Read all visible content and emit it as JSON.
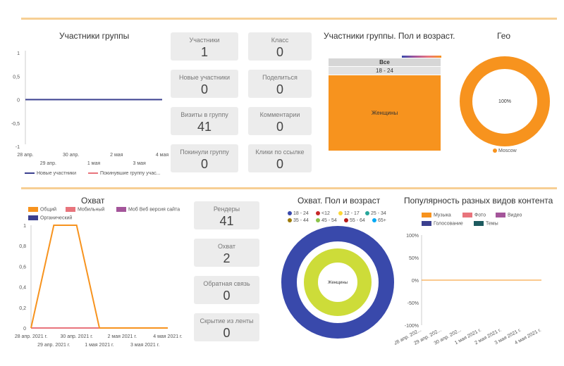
{
  "colors": {
    "orange": "#f7931e",
    "pink": "#e8747c",
    "purple": "#a4559a",
    "navy": "#3a3f8f",
    "teal": "#1d5a5f",
    "lime": "#cddc39",
    "blue": "#3949ab",
    "gray_card": "#ececec",
    "divider": "#f7cf94"
  },
  "members_chart": {
    "title": "Участники группы",
    "legend": [
      "Новые участники",
      "Покинувшие группу учас..."
    ]
  },
  "cards_top": [
    {
      "label": "Участники",
      "value": "1"
    },
    {
      "label": "Класс",
      "value": "0"
    },
    {
      "label": "Новые участники",
      "value": "0"
    },
    {
      "label": "Поделиться",
      "value": "0"
    },
    {
      "label": "Визиты в группу",
      "value": "41"
    },
    {
      "label": "Комментарии",
      "value": "0"
    },
    {
      "label": "Покинули группу",
      "value": "0"
    },
    {
      "label": "Клики по ссылке",
      "value": "0"
    }
  ],
  "treemap": {
    "title": "Участники группы. Пол и возраст.",
    "level1": "Все",
    "level2": "18 - 24",
    "leaf": "Женщины"
  },
  "geo": {
    "title": "Гео",
    "center_label": "100%",
    "legend": "Moscow"
  },
  "reach_chart": {
    "title": "Охват",
    "legend": [
      "Общий",
      "Мобильный",
      "Моб Веб версия сайта",
      "Органический"
    ]
  },
  "cards_bottom": [
    {
      "label": "Рендеры",
      "value": "41"
    },
    {
      "label": "Охват",
      "value": "2"
    },
    {
      "label": "Обратная связь",
      "value": "0"
    },
    {
      "label": "Скрытие из ленты",
      "value": "0"
    }
  ],
  "reach_demo": {
    "title": "Охват. Пол и возраст",
    "legend": [
      "18 - 24",
      "<12",
      "12 - 17",
      "25 - 34",
      "35 - 44",
      "45 - 54",
      "55 - 64",
      "65+"
    ],
    "center_label": "Женщины"
  },
  "content_pop": {
    "title": "Популярность разных видов контента",
    "legend": [
      "Музыка",
      "Фото",
      "Видео",
      "Голосование",
      "Темы"
    ]
  },
  "chart_data": [
    {
      "type": "line",
      "title": "Участники группы",
      "ylim": [
        -1,
        1
      ],
      "y_ticks": [
        "1",
        "0,5",
        "0",
        "-0,5",
        "-1"
      ],
      "x_ticks_row1": [
        "28 апр.",
        "30 апр.",
        "2 мая",
        "4 мая"
      ],
      "x_ticks_row2": [
        "29 апр.",
        "1 мая",
        "3 мая"
      ],
      "x": [
        "28 апр.",
        "29 апр.",
        "30 апр.",
        "1 мая",
        "2 мая",
        "3 мая",
        "4 мая"
      ],
      "series": [
        {
          "name": "Новые участники",
          "values": [
            0,
            0,
            0,
            0,
            0,
            0,
            0
          ]
        },
        {
          "name": "Покинувшие группу учас...",
          "values": [
            0,
            0,
            0,
            0,
            0,
            0,
            0
          ]
        }
      ],
      "legend_position": "bottom"
    },
    {
      "type": "treemap",
      "title": "Участники группы. Пол и возраст.",
      "values": [
        {
          "path": [
            "Все",
            "18 - 24",
            "Женщины"
          ],
          "value": 1
        }
      ]
    },
    {
      "type": "pie",
      "title": "Гео",
      "slices": [
        {
          "name": "Moscow",
          "value": 100
        }
      ],
      "donut": true
    },
    {
      "type": "line",
      "title": "Охват",
      "ylim": [
        0,
        1
      ],
      "y_ticks": [
        "1",
        "0,8",
        "0,6",
        "0,4",
        "0,2",
        "0"
      ],
      "x_ticks_row1": [
        "28 апр. 2021 г.",
        "30 апр. 2021 г.",
        "2 мая 2021 г.",
        "4 мая 2021 г."
      ],
      "x_ticks_row2": [
        "29 апр. 2021 г.",
        "1 мая 2021 г.",
        "3 мая 2021 г."
      ],
      "x": [
        "28 апр.",
        "29 апр.",
        "30 апр.",
        "1 мая",
        "2 мая",
        "3 мая",
        "4 мая"
      ],
      "series": [
        {
          "name": "Общий",
          "values": [
            0,
            1,
            1,
            0,
            0,
            0,
            0
          ]
        },
        {
          "name": "Мобильный",
          "values": [
            0,
            0,
            0,
            0,
            0,
            0,
            0
          ]
        },
        {
          "name": "Моб Веб версия сайта",
          "values": [
            0,
            0,
            0,
            0,
            0,
            0,
            0
          ]
        },
        {
          "name": "Органический",
          "values": [
            0,
            0,
            0,
            0,
            0,
            0,
            0
          ]
        }
      ],
      "legend_position": "top"
    },
    {
      "type": "pie",
      "title": "Охват. Пол и возраст",
      "rings": [
        {
          "level": "gender",
          "slices": [
            {
              "name": "Женщины",
              "value": 1
            }
          ]
        },
        {
          "level": "age",
          "slices": [
            {
              "name": "18 - 24",
              "value": 1
            }
          ]
        }
      ],
      "donut": true
    },
    {
      "type": "line",
      "title": "Популярность разных видов контента",
      "ylim": [
        -100,
        100
      ],
      "y_ticks": [
        "100%",
        "50%",
        "0%",
        "-50%",
        "-100%"
      ],
      "x": [
        "28 апр. 202...",
        "29 апр. 202...",
        "30 апр. 202...",
        "1 мая 2021 г.",
        "2 мая 2021 г.",
        "3 мая 2021 г.",
        "4 мая 2021 г."
      ],
      "series": [
        {
          "name": "Музыка",
          "values": [
            0,
            0,
            0,
            0,
            0,
            0,
            0
          ]
        },
        {
          "name": "Фото",
          "values": [
            0,
            0,
            0,
            0,
            0,
            0,
            0
          ]
        },
        {
          "name": "Видео",
          "values": [
            0,
            0,
            0,
            0,
            0,
            0,
            0
          ]
        },
        {
          "name": "Голосование",
          "values": [
            0,
            0,
            0,
            0,
            0,
            0,
            0
          ]
        },
        {
          "name": "Темы",
          "values": [
            0,
            0,
            0,
            0,
            0,
            0,
            0
          ]
        }
      ],
      "legend_position": "top"
    }
  ]
}
